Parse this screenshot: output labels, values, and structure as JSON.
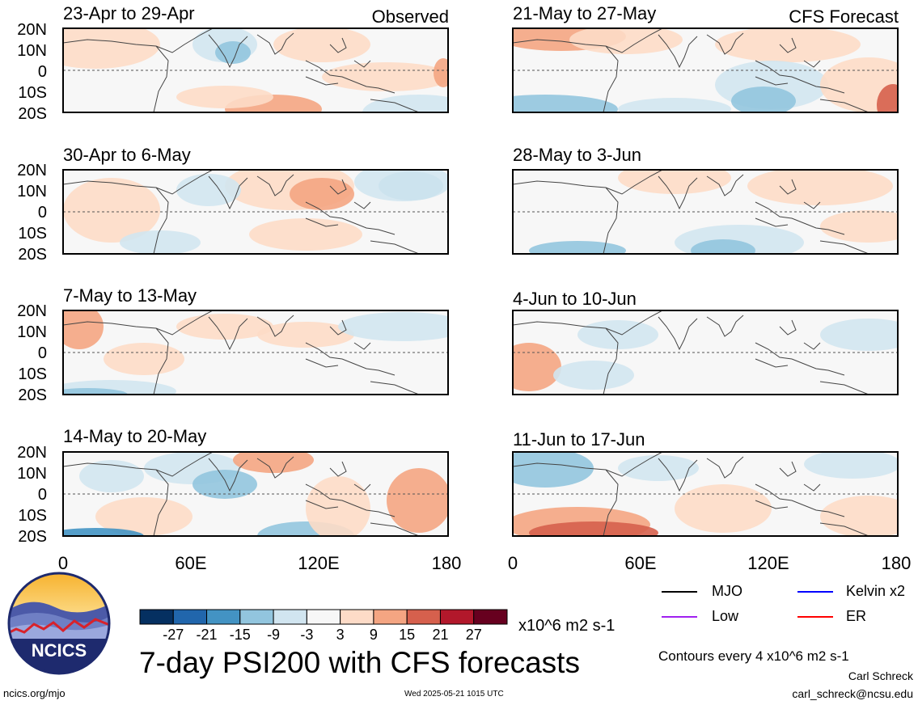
{
  "map": {
    "panels": [
      {
        "date_range": "23-Apr to 29-Apr",
        "tag": "Observed"
      },
      {
        "date_range": "21-May to 27-May",
        "tag": "CFS Forecast"
      },
      {
        "date_range": "30-Apr to 6-May",
        "tag": ""
      },
      {
        "date_range": "28-May to 3-Jun",
        "tag": ""
      },
      {
        "date_range": "7-May to 13-May",
        "tag": ""
      },
      {
        "date_range": "4-Jun to 10-Jun",
        "tag": ""
      },
      {
        "date_range": "14-May to 20-May",
        "tag": ""
      },
      {
        "date_range": "11-Jun to 17-Jun",
        "tag": ""
      }
    ],
    "lat_labels": [
      "20N",
      "10N",
      "0",
      "10S",
      "20S"
    ],
    "lon_labels": [
      "0",
      "60E",
      "120E",
      "180"
    ],
    "field_colors": {
      "neg27": "#053061",
      "neg21": "#2166ac",
      "neg15": "#4393c3",
      "neg9": "#92c5de",
      "neg3": "#d1e5f0",
      "zero": "#f7f7f7",
      "pos3": "#fddbc7",
      "pos9": "#f4a582",
      "pos15": "#d6604d",
      "pos21": "#b2182b",
      "pos27": "#67001f"
    }
  },
  "colorbar": {
    "colors": [
      "#053061",
      "#2166ac",
      "#4393c3",
      "#92c5de",
      "#d1e5f0",
      "#f7f7f7",
      "#fddbc7",
      "#f4a582",
      "#d6604d",
      "#b2182b",
      "#67001f"
    ],
    "ticks": [
      "-27",
      "-21",
      "-15",
      "-9",
      "-3",
      "3",
      "9",
      "15",
      "21",
      "27"
    ],
    "units": "x10^6 m2 s-1"
  },
  "legend": {
    "items": [
      {
        "label": "MJO",
        "color": "#000000"
      },
      {
        "label": "Kelvin x2",
        "color": "#0000ff"
      },
      {
        "label": "Low",
        "color": "#a020f0"
      },
      {
        "label": "ER",
        "color": "#ff0000"
      }
    ]
  },
  "main_title": "7-day PSI200 with CFS forecasts",
  "logo": {
    "text": "NCICS"
  },
  "footer": {
    "contours_note": "Contours every 4 x10^6 m2 s-1",
    "author": "Carl Schreck",
    "email": "carl_schreck@ncsu.edu",
    "site": "ncics.org/mjo",
    "timestamp": "Wed 2025-05-21 1015 UTC"
  }
}
